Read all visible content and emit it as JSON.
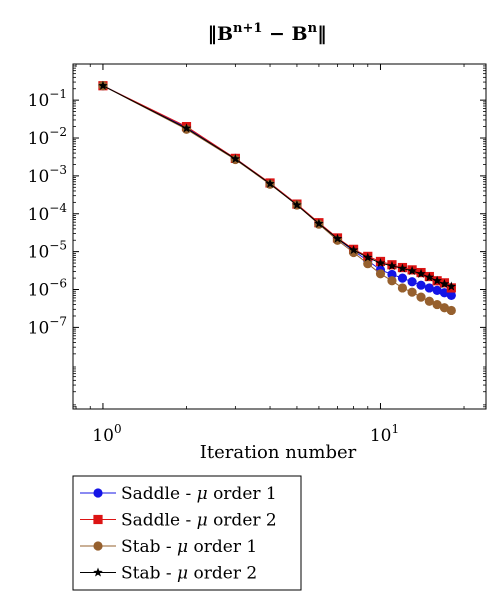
{
  "chart_data": {
    "type": "line",
    "title": "‖B^{n+1} − B^{n}‖",
    "title_parts": {
      "norm_bar": "‖",
      "base1": "B",
      "sup1": "n+1",
      "minus": " − ",
      "base2": "B",
      "sup2": "n"
    },
    "xlabel": "Iteration number",
    "ylabel": "",
    "x_scale": "log",
    "y_scale": "log",
    "xlim": [
      0.78,
      24
    ],
    "ylim": [
      7e-10,
      0.9
    ],
    "grid": false,
    "legend_position": "below",
    "x_ticks": [
      {
        "value": 1,
        "base": "10",
        "exp": "0"
      },
      {
        "value": 10,
        "base": "10",
        "exp": "1"
      }
    ],
    "y_ticks": [
      {
        "value": 0.1,
        "base": "10",
        "exp": "−1"
      },
      {
        "value": 0.01,
        "base": "10",
        "exp": "−2"
      },
      {
        "value": 0.001,
        "base": "10",
        "exp": "−3"
      },
      {
        "value": 0.0001,
        "base": "10",
        "exp": "−4"
      },
      {
        "value": 1e-05,
        "base": "10",
        "exp": "−5"
      },
      {
        "value": 1e-06,
        "base": "10",
        "exp": "−6"
      },
      {
        "value": 1e-07,
        "base": "10",
        "exp": "−7"
      }
    ],
    "x": [
      1,
      2,
      3,
      4,
      5,
      6,
      7,
      8,
      9,
      10,
      11,
      12,
      13,
      14,
      15,
      16,
      17,
      18
    ],
    "series": [
      {
        "name": "Saddle - μ order 1",
        "label_prefix": "Saddle - ",
        "label_mu": "μ",
        "label_suffix": " order 1",
        "color": "#1414e6",
        "marker": "circle",
        "values": [
          0.24,
          0.019,
          0.0029,
          0.00063,
          0.00018,
          5.5e-05,
          2.2e-05,
          1.05e-05,
          5.8e-06,
          3.3e-06,
          2.5e-06,
          2e-06,
          1.6e-06,
          1.3e-06,
          1.1e-06,
          9.5e-07,
          8.2e-07,
          7e-07
        ]
      },
      {
        "name": "Saddle - μ order 2",
        "label_prefix": "Saddle - ",
        "label_mu": "μ",
        "label_suffix": " order 2",
        "color": "#dc1414",
        "marker": "square",
        "values": [
          0.24,
          0.02,
          0.0029,
          0.00065,
          0.00018,
          5.8e-05,
          2.3e-05,
          1.15e-05,
          7.5e-06,
          5.5e-06,
          4.5e-06,
          3.8e-06,
          3.3e-06,
          2.8e-06,
          2.2e-06,
          1.7e-06,
          1.5e-06,
          1.1e-06
        ]
      },
      {
        "name": "Stab - μ order 1",
        "label_prefix": "Stab - ",
        "label_mu": "μ",
        "label_suffix": " order 1",
        "color": "#96602e",
        "marker": "circle",
        "values": [
          0.24,
          0.017,
          0.0027,
          0.0006,
          0.00017,
          5.3e-05,
          2e-05,
          9.5e-06,
          4.8e-06,
          2.6e-06,
          1.7e-06,
          1.1e-06,
          8.5e-07,
          6.3e-07,
          4.9e-07,
          4e-07,
          3.3e-07,
          2.8e-07
        ]
      },
      {
        "name": "Stab - μ order 2",
        "label_prefix": "Stab - ",
        "label_mu": "μ",
        "label_suffix": " order 2",
        "color": "#000000",
        "marker": "star",
        "values": [
          0.24,
          0.018,
          0.0028,
          0.00062,
          0.00017,
          5.5e-05,
          2.2e-05,
          1.1e-05,
          7e-06,
          5e-06,
          4.2e-06,
          3.6e-06,
          3.1e-06,
          2.6e-06,
          2.1e-06,
          1.7e-06,
          1.4e-06,
          1.2e-06
        ]
      }
    ]
  }
}
